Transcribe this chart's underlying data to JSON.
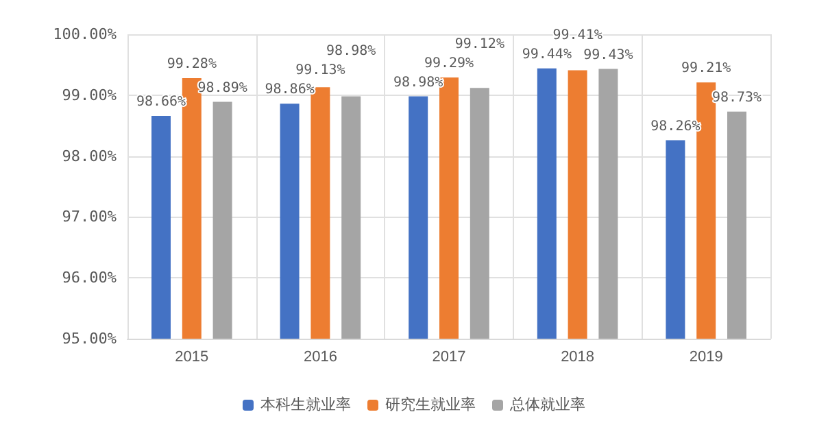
{
  "chart_data": {
    "type": "bar",
    "categories": [
      "2015",
      "2016",
      "2017",
      "2018",
      "2019"
    ],
    "series": [
      {
        "name": "本科生就业率",
        "color": "#4472c4",
        "values": [
          98.66,
          98.86,
          98.98,
          99.44,
          98.26
        ],
        "value_labels": [
          "98.66%",
          "98.86%",
          "98.98%",
          "99.44%",
          "98.26%"
        ]
      },
      {
        "name": "研究生就业率",
        "color": "#ed7d31",
        "values": [
          99.28,
          99.13,
          99.29,
          99.41,
          99.21
        ],
        "value_labels": [
          "99.28%",
          "99.13%",
          "99.29%",
          "99.41%",
          "99.21%"
        ]
      },
      {
        "name": "总体就业率",
        "color": "#a5a5a5",
        "values": [
          98.89,
          98.98,
          99.12,
          99.43,
          98.73
        ],
        "value_labels": [
          "98.89%",
          "98.98%",
          "99.12%",
          "99.43%",
          "98.73%"
        ]
      }
    ],
    "ylim": [
      95,
      100
    ],
    "yticks": [
      {
        "value": 95,
        "label": "95.00%"
      },
      {
        "value": 96,
        "label": "96.00%"
      },
      {
        "value": 97,
        "label": "97.00%"
      },
      {
        "value": 98,
        "label": "98.00%"
      },
      {
        "value": 99,
        "label": "99.00%"
      },
      {
        "value": 100,
        "label": "100.00%"
      }
    ],
    "grid": true,
    "legend": "bottom"
  }
}
